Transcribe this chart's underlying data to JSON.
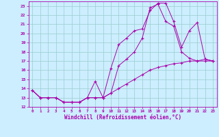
{
  "title": "",
  "xlabel": "Windchill (Refroidissement éolien,°C)",
  "bg_color": "#cceeff",
  "line_color": "#aa00aa",
  "grid_color": "#99cccc",
  "xlim": [
    -0.5,
    23.5
  ],
  "ylim": [
    12,
    23.5
  ],
  "xticks": [
    0,
    1,
    2,
    3,
    4,
    5,
    6,
    7,
    8,
    9,
    10,
    11,
    12,
    13,
    14,
    15,
    16,
    17,
    18,
    19,
    20,
    21,
    22,
    23
  ],
  "yticks": [
    12,
    13,
    14,
    15,
    16,
    17,
    18,
    19,
    20,
    21,
    22,
    23
  ],
  "line1_x": [
    0,
    1,
    2,
    3,
    4,
    5,
    6,
    7,
    8,
    9,
    10,
    11,
    12,
    13,
    14,
    15,
    16,
    17,
    18,
    19,
    20,
    21,
    22,
    23
  ],
  "line1_y": [
    13.8,
    13.0,
    13.0,
    13.0,
    12.5,
    12.5,
    12.5,
    13.0,
    13.0,
    13.0,
    13.5,
    14.0,
    14.5,
    15.0,
    15.5,
    16.0,
    16.3,
    16.5,
    16.7,
    16.8,
    17.0,
    17.0,
    17.0,
    17.0
  ],
  "line2_x": [
    0,
    1,
    2,
    3,
    4,
    5,
    6,
    7,
    8,
    9,
    10,
    11,
    12,
    13,
    14,
    15,
    16,
    17,
    18,
    19,
    20,
    21,
    22,
    23
  ],
  "line2_y": [
    13.8,
    13.0,
    13.0,
    13.0,
    12.5,
    12.5,
    12.5,
    13.0,
    14.8,
    13.0,
    16.2,
    18.8,
    19.5,
    20.3,
    20.5,
    22.5,
    23.3,
    23.3,
    21.3,
    18.5,
    20.3,
    21.2,
    17.2,
    17.0
  ],
  "line3_x": [
    0,
    1,
    2,
    3,
    4,
    5,
    6,
    7,
    8,
    9,
    10,
    11,
    12,
    13,
    14,
    15,
    16,
    17,
    18,
    19,
    20,
    21,
    22,
    23
  ],
  "line3_y": [
    13.8,
    13.0,
    13.0,
    13.0,
    12.5,
    12.5,
    12.5,
    13.0,
    13.0,
    13.0,
    13.5,
    16.5,
    17.2,
    18.0,
    19.5,
    22.8,
    23.2,
    21.3,
    20.8,
    18.0,
    17.3,
    17.0,
    17.2,
    17.0
  ]
}
